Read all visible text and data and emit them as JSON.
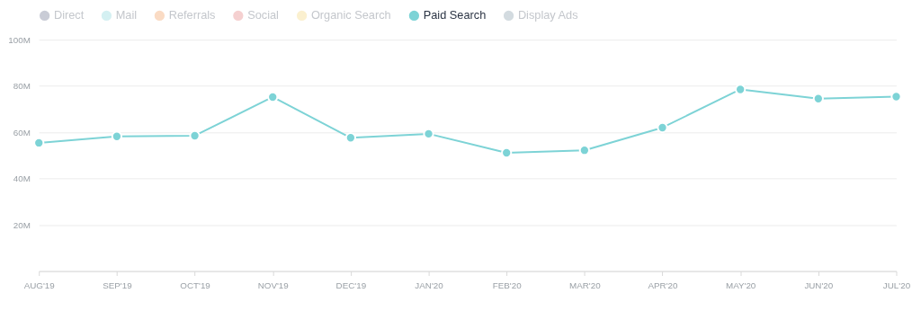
{
  "chart_data": {
    "type": "line",
    "categories": [
      "AUG'19",
      "SEP'19",
      "OCT'19",
      "NOV'19",
      "DEC'19",
      "JAN'20",
      "FEB'20",
      "MAR'20",
      "APR'20",
      "MAY'20",
      "JUN'20",
      "JUL'20"
    ],
    "series": [
      {
        "name": "Direct",
        "color": "#c9ccd6",
        "values": [
          null,
          null,
          null,
          null,
          null,
          null,
          null,
          null,
          null,
          null,
          null,
          null
        ]
      },
      {
        "name": "Mail",
        "color": "#d4f0f2",
        "values": [
          null,
          null,
          null,
          null,
          null,
          null,
          null,
          null,
          null,
          null,
          null,
          null
        ]
      },
      {
        "name": "Referrals",
        "color": "#fadbc4",
        "values": [
          null,
          null,
          null,
          null,
          null,
          null,
          null,
          null,
          null,
          null,
          null,
          null
        ]
      },
      {
        "name": "Social",
        "color": "#f5d0d0",
        "values": [
          null,
          null,
          null,
          null,
          null,
          null,
          null,
          null,
          null,
          null,
          null,
          null
        ]
      },
      {
        "name": "Organic Search",
        "color": "#fbf0cf",
        "values": [
          null,
          null,
          null,
          null,
          null,
          null,
          null,
          null,
          null,
          null,
          null,
          null
        ]
      },
      {
        "name": "Paid Search",
        "color": "#7dd3d6",
        "values": [
          55.4,
          58.2,
          58.5,
          75.2,
          57.6,
          59.3,
          51.1,
          52.2,
          62.0,
          78.5,
          74.5,
          75.4
        ]
      },
      {
        "name": "Display Ads",
        "color": "#d3dbe0",
        "values": [
          null,
          null,
          null,
          null,
          null,
          null,
          null,
          null,
          null,
          null,
          null,
          null
        ]
      }
    ],
    "ylim": [
      0,
      100
    ],
    "yticks": [
      {
        "value": 0,
        "label": null
      },
      {
        "value": 20,
        "label": "20M"
      },
      {
        "value": 40,
        "label": "40M"
      },
      {
        "value": 60,
        "label": "60M"
      },
      {
        "value": 80,
        "label": "80M"
      },
      {
        "value": 100,
        "label": "100M"
      }
    ],
    "grid": "y",
    "legend": "top left",
    "marker": "circle",
    "line_style": "solid"
  }
}
